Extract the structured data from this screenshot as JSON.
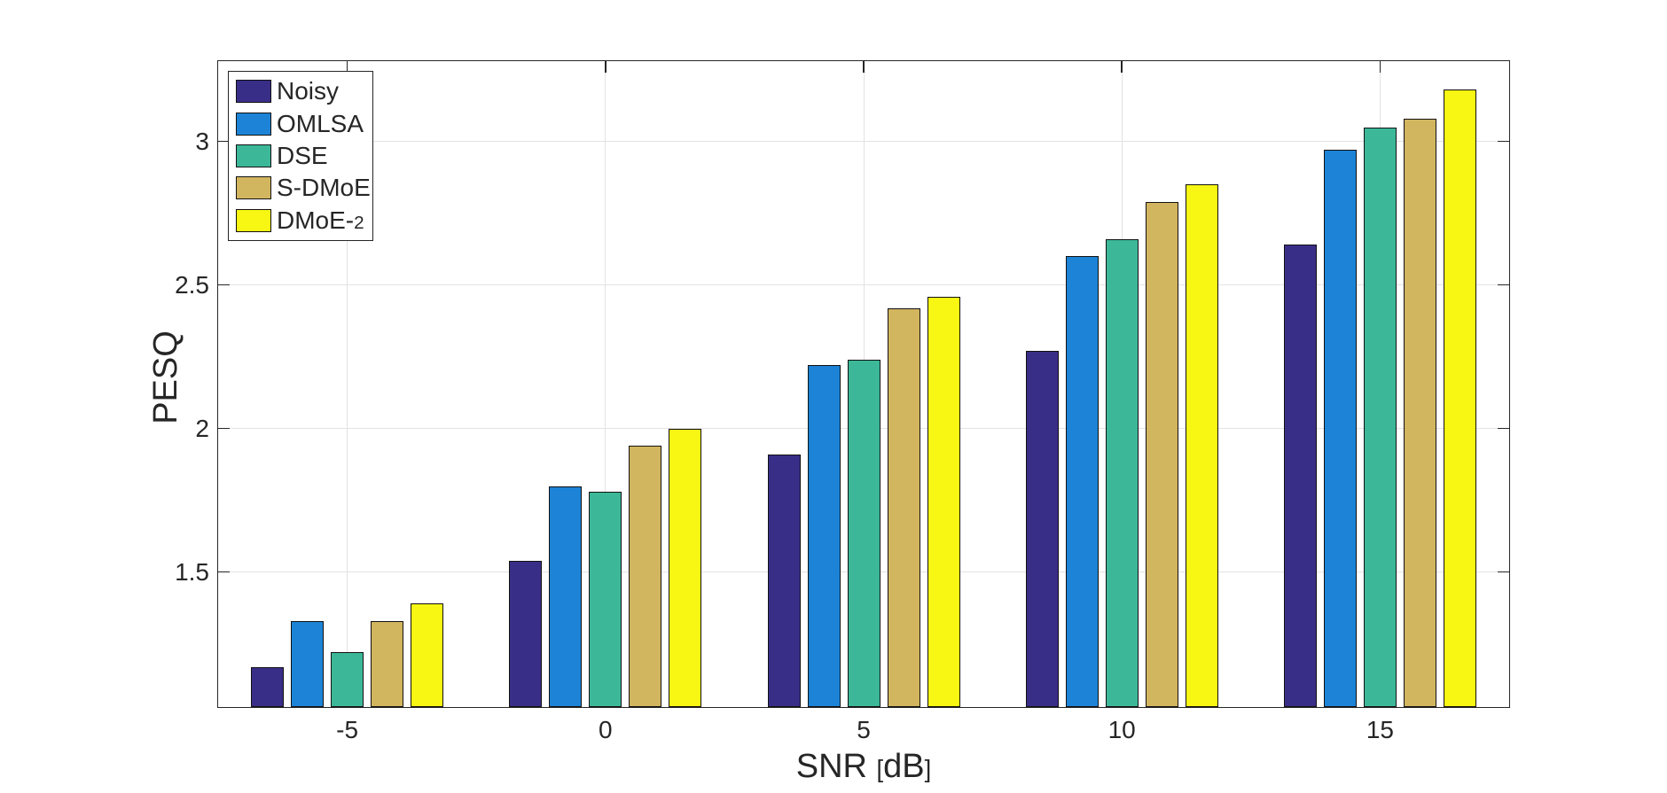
{
  "chart_data": {
    "type": "bar",
    "title": "",
    "xlabel": "SNR [dB]",
    "ylabel": "PESQ",
    "categories": [
      "-5",
      "0",
      "5",
      "10",
      "15"
    ],
    "series": [
      {
        "name": "Noisy",
        "color": "#392E87",
        "values": [
          1.17,
          1.54,
          1.91,
          2.27,
          2.64
        ]
      },
      {
        "name": "OMLSA",
        "color": "#1C83D6",
        "values": [
          1.33,
          1.8,
          2.22,
          2.6,
          2.97
        ]
      },
      {
        "name": "DSE",
        "color": "#3CB899",
        "values": [
          1.22,
          1.78,
          2.24,
          2.66,
          3.05
        ]
      },
      {
        "name": "S-DMoE",
        "color": "#D2B55F",
        "values": [
          1.33,
          1.94,
          2.42,
          2.79,
          3.08
        ]
      },
      {
        "name": "DMoE-2",
        "color": "#F7F713",
        "values": [
          1.39,
          2.0,
          2.46,
          2.85,
          3.18
        ]
      }
    ],
    "ylim": [
      1.03,
      3.28
    ],
    "yticks": [
      1.5,
      2,
      2.5,
      3
    ],
    "ytick_labels": [
      "1.5",
      "2",
      "2.5",
      "3"
    ],
    "xtick_labels": [
      "-5",
      "0",
      "5",
      "10",
      "15"
    ],
    "grid": true,
    "legend": {
      "position": "top-left",
      "entries": [
        "Noisy",
        "OMLSA",
        "DSE",
        "S-DMoE",
        "DMoE-2"
      ]
    },
    "colors": {
      "background": "#ffffff",
      "axis": "#262626",
      "grid": "#e3e3e3",
      "bar_edge": "#111111"
    }
  }
}
